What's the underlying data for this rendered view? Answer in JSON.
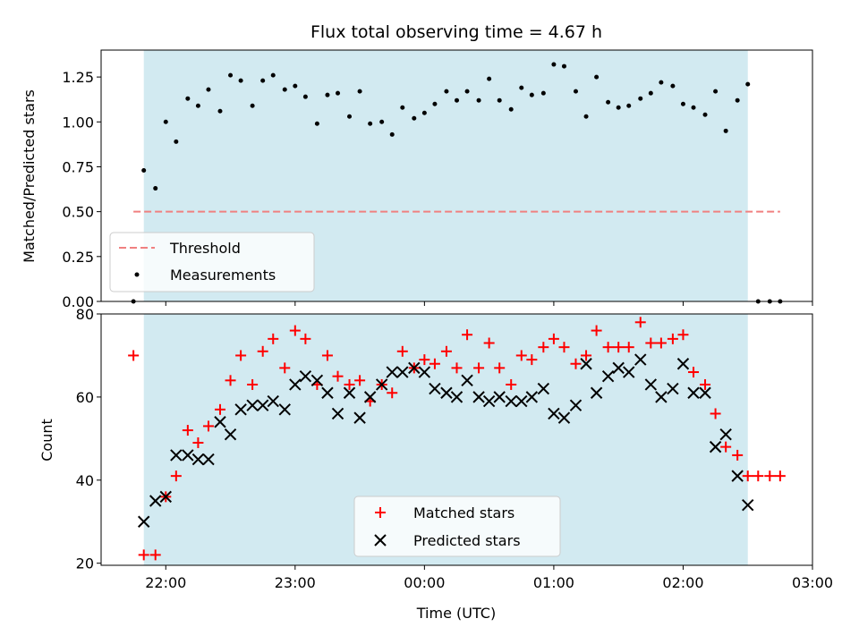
{
  "chart_data": [
    {
      "type": "scatter",
      "title": "Flux total observing time = 4.67 h",
      "xlabel": "",
      "ylabel": "Matched/Predicted stars",
      "ylim": [
        0,
        1.4
      ],
      "yticks": [
        "0.00",
        "0.25",
        "0.50",
        "0.75",
        "1.00",
        "1.25"
      ],
      "xlim": [
        -2.5,
        3.0
      ],
      "shaded_span": [
        -2.17,
        2.5
      ],
      "shade_color": "#add8e6",
      "threshold": {
        "name": "Threshold",
        "value": 0.5,
        "x_range": [
          -2.25,
          2.75
        ],
        "color": "#f08080"
      },
      "legend": {
        "position": "lower-left",
        "entries": [
          "Threshold",
          "Measurements"
        ]
      },
      "series": [
        {
          "name": "Measurements",
          "color": "#000000",
          "x": [
            -2.25,
            -2.17,
            -2.08,
            -2.0,
            -1.92,
            -1.83,
            -1.75,
            -1.67,
            -1.58,
            -1.5,
            -1.42,
            -1.33,
            -1.25,
            -1.17,
            -1.08,
            -1.0,
            -0.92,
            -0.83,
            -0.75,
            -0.67,
            -0.58,
            -0.5,
            -0.42,
            -0.33,
            -0.25,
            -0.17,
            -0.08,
            0.0,
            0.08,
            0.17,
            0.25,
            0.33,
            0.42,
            0.5,
            0.58,
            0.67,
            0.75,
            0.83,
            0.92,
            1.0,
            1.08,
            1.17,
            1.25,
            1.33,
            1.42,
            1.5,
            1.58,
            1.67,
            1.75,
            1.83,
            1.92,
            2.0,
            2.08,
            2.17,
            2.25,
            2.33,
            2.42,
            2.5,
            2.58,
            2.67,
            2.75
          ],
          "y": [
            0.0,
            0.73,
            0.63,
            1.0,
            0.89,
            1.13,
            1.09,
            1.18,
            1.06,
            1.26,
            1.23,
            1.09,
            1.23,
            1.26,
            1.18,
            1.2,
            1.14,
            0.99,
            1.15,
            1.16,
            1.03,
            1.17,
            0.99,
            1.0,
            0.93,
            1.08,
            1.02,
            1.05,
            1.1,
            1.17,
            1.12,
            1.17,
            1.12,
            1.24,
            1.12,
            1.07,
            1.19,
            1.15,
            1.16,
            1.32,
            1.31,
            1.17,
            1.03,
            1.25,
            1.11,
            1.08,
            1.09,
            1.13,
            1.16,
            1.22,
            1.2,
            1.1,
            1.08,
            1.04,
            1.17,
            0.95,
            1.12,
            1.21,
            0.0,
            0.0,
            0.0
          ]
        }
      ]
    },
    {
      "type": "scatter",
      "title": "",
      "xlabel": "Time (UTC)",
      "ylabel": "Count",
      "ylim": [
        19.5,
        80
      ],
      "yticks": [
        "20",
        "40",
        "60",
        "80"
      ],
      "xlim": [
        -2.5,
        3.0
      ],
      "xticks": [
        "22:00",
        "23:00",
        "00:00",
        "01:00",
        "02:00",
        "03:00"
      ],
      "xtick_values": [
        -2,
        -1,
        0,
        1,
        2,
        3
      ],
      "shaded_span": [
        -2.17,
        2.5
      ],
      "shade_color": "#add8e6",
      "legend": {
        "position": "lower-center",
        "entries": [
          "Matched stars",
          "Predicted stars"
        ]
      },
      "series": [
        {
          "name": "Matched stars",
          "color": "#ff0000",
          "x": [
            -2.25,
            -2.17,
            -2.08,
            -2.0,
            -1.92,
            -1.83,
            -1.75,
            -1.67,
            -1.58,
            -1.5,
            -1.42,
            -1.33,
            -1.25,
            -1.17,
            -1.08,
            -1.0,
            -0.92,
            -0.83,
            -0.75,
            -0.67,
            -0.58,
            -0.5,
            -0.42,
            -0.33,
            -0.25,
            -0.17,
            -0.08,
            0.0,
            0.08,
            0.17,
            0.25,
            0.33,
            0.42,
            0.5,
            0.58,
            0.67,
            0.75,
            0.83,
            0.92,
            1.0,
            1.08,
            1.17,
            1.25,
            1.33,
            1.42,
            1.5,
            1.58,
            1.67,
            1.75,
            1.83,
            1.92,
            2.0,
            2.08,
            2.17,
            2.25,
            2.33,
            2.42,
            2.5,
            2.58,
            2.67,
            2.75
          ],
          "y": [
            70,
            22,
            22,
            36,
            41,
            52,
            49,
            53,
            57,
            64,
            70,
            63,
            71,
            74,
            67,
            76,
            74,
            63,
            70,
            65,
            63,
            64,
            59,
            63,
            61,
            71,
            67,
            69,
            68,
            71,
            67,
            75,
            67,
            73,
            67,
            63,
            70,
            69,
            72,
            74,
            72,
            68,
            70,
            76,
            72,
            72,
            72,
            78,
            73,
            73,
            74,
            75,
            66,
            63,
            56,
            48,
            46,
            41,
            41,
            41,
            41
          ]
        },
        {
          "name": "Predicted stars",
          "color": "#000000",
          "x": [
            -2.17,
            -2.08,
            -2.0,
            -1.92,
            -1.83,
            -1.75,
            -1.67,
            -1.58,
            -1.5,
            -1.42,
            -1.33,
            -1.25,
            -1.17,
            -1.08,
            -1.0,
            -0.92,
            -0.83,
            -0.75,
            -0.67,
            -0.58,
            -0.5,
            -0.42,
            -0.33,
            -0.25,
            -0.17,
            -0.08,
            0.0,
            0.08,
            0.17,
            0.25,
            0.33,
            0.42,
            0.5,
            0.58,
            0.67,
            0.75,
            0.83,
            0.92,
            1.0,
            1.08,
            1.17,
            1.25,
            1.33,
            1.42,
            1.5,
            1.58,
            1.67,
            1.75,
            1.83,
            1.92,
            2.0,
            2.08,
            2.17,
            2.25,
            2.33,
            2.42,
            2.5
          ],
          "y": [
            30,
            35,
            36,
            46,
            46,
            45,
            45,
            54,
            51,
            57,
            58,
            58,
            59,
            57,
            63,
            65,
            64,
            61,
            56,
            61,
            55,
            60,
            63,
            66,
            66,
            67,
            66,
            62,
            61,
            60,
            64,
            60,
            59,
            60,
            59,
            59,
            60,
            62,
            56,
            55,
            58,
            68,
            61,
            65,
            67,
            66,
            69,
            63,
            60,
            62,
            68,
            61,
            61,
            48,
            51,
            41,
            34
          ]
        }
      ]
    }
  ]
}
